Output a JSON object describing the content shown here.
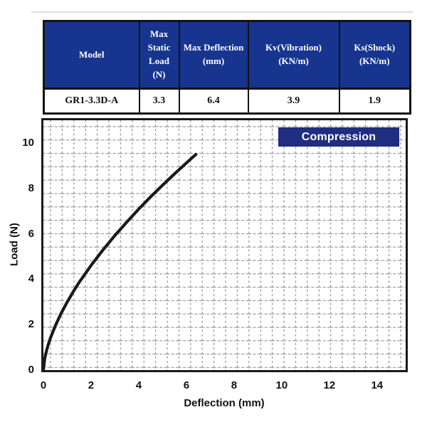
{
  "spec_table": {
    "columns": [
      "Model",
      "Max Static Load (N)",
      "Max Deflection (mm)",
      "Kv(Vibration) (KN/m)",
      "Ks(Shock) (KN/m)"
    ],
    "rows": [
      [
        "GR1-3.3D-A",
        "3.3",
        "6.4",
        "3.9",
        "1.9"
      ]
    ],
    "header_bg": "#17348e",
    "header_text_color": "#ffffff",
    "border_color": "#131313"
  },
  "chart_data": {
    "type": "line",
    "title": "Compression",
    "xlabel": "Deflection (mm)",
    "ylabel": "Load (N)",
    "xlim": [
      0,
      15.2
    ],
    "ylim": [
      0,
      11
    ],
    "x_ticks": [
      0,
      2,
      4,
      6,
      8,
      10,
      12,
      14
    ],
    "y_ticks": [
      0,
      2,
      4,
      6,
      8,
      10
    ],
    "grid": true,
    "grid_style": "fine dashed mesh",
    "grid_color": "#9c9c9c",
    "legend": false,
    "badge": {
      "label": "Compression",
      "bg": "#1f2e80",
      "text_color": "#ffffff"
    },
    "series": [
      {
        "name": "compression-load-deflection-curve",
        "color": "#1a1a1a",
        "points": [
          [
            0,
            0
          ],
          [
            0.05,
            0.47
          ],
          [
            0.1,
            0.72
          ],
          [
            0.2,
            1.11
          ],
          [
            0.3,
            1.42
          ],
          [
            0.5,
            1.95
          ],
          [
            0.75,
            2.51
          ],
          [
            1.0,
            3.0
          ],
          [
            1.25,
            3.45
          ],
          [
            1.5,
            3.86
          ],
          [
            2.0,
            4.61
          ],
          [
            2.5,
            5.29
          ],
          [
            3.0,
            5.93
          ],
          [
            3.5,
            6.52
          ],
          [
            4.0,
            7.09
          ],
          [
            4.5,
            7.63
          ],
          [
            5.0,
            8.14
          ],
          [
            5.5,
            8.64
          ],
          [
            6.0,
            9.12
          ],
          [
            6.4,
            9.5
          ]
        ]
      }
    ]
  }
}
